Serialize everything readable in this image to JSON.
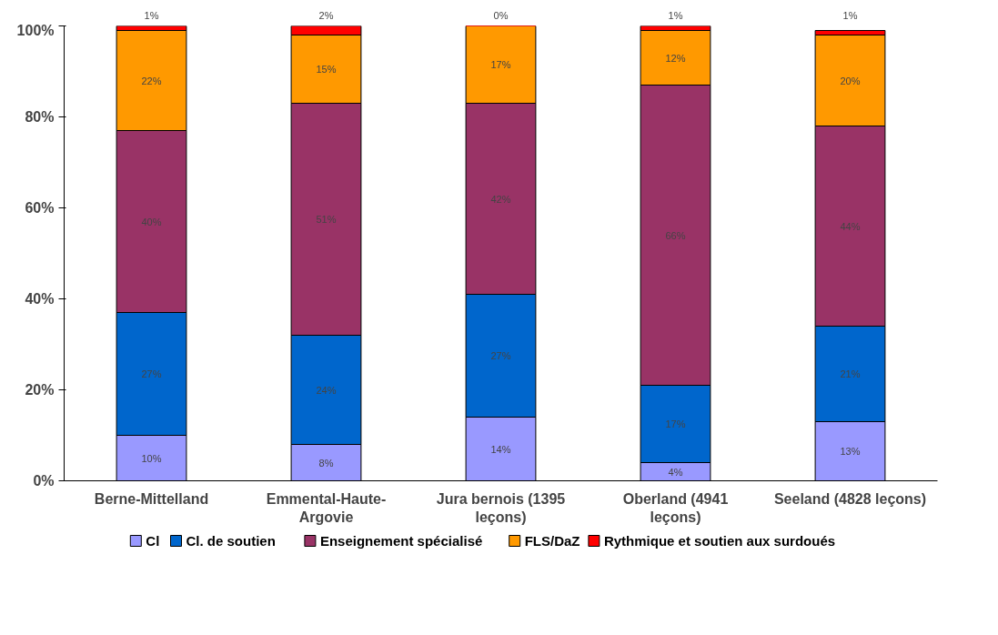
{
  "chart_data": {
    "type": "bar",
    "stacked": true,
    "categories": [
      "Berne-Mittelland",
      "Emmental-Haute-Argovie",
      "Jura bernois (1395 leçons)",
      "Oberland (4941 leçons)",
      "Seeland (4828 leçons)"
    ],
    "series": [
      {
        "name": "Cl",
        "color": "#9999ff",
        "values": [
          10,
          8,
          14,
          4,
          13
        ],
        "value_labels": [
          "10%",
          "8%",
          "14%",
          "4%",
          "13%"
        ]
      },
      {
        "name": "Cl. de soutien",
        "color": "#0066cc",
        "values": [
          27,
          24,
          27,
          17,
          21
        ],
        "value_labels": [
          "27%",
          "24%",
          "27%",
          "17%",
          "21%"
        ]
      },
      {
        "name": "Enseignement spécialisé",
        "color": "#993366",
        "values": [
          40,
          51,
          42,
          66,
          44
        ],
        "value_labels": [
          "40%",
          "51%",
          "42%",
          "66%",
          "44%"
        ]
      },
      {
        "name": "FLS/DaZ",
        "color": "#ff9900",
        "values": [
          22,
          15,
          17,
          12,
          20
        ],
        "value_labels": [
          "22%",
          "15%",
          "17%",
          "12%",
          "20%"
        ]
      },
      {
        "name": "Rythmique et soutien aux surdoués",
        "color": "#ff0000",
        "values": [
          1,
          2,
          0,
          1,
          1
        ],
        "value_labels": [
          "1%",
          "2%",
          "0%",
          "1%",
          "1%"
        ]
      }
    ],
    "ylim": [
      0,
      100
    ],
    "yticks": [
      {
        "value": 0,
        "label": "0%"
      },
      {
        "value": 20,
        "label": "20%"
      },
      {
        "value": 40,
        "label": "40%"
      },
      {
        "value": 60,
        "label": "60%"
      },
      {
        "value": 80,
        "label": "80%"
      },
      {
        "value": 100,
        "label": "100%"
      }
    ],
    "legend": "bottom",
    "grid": false
  }
}
